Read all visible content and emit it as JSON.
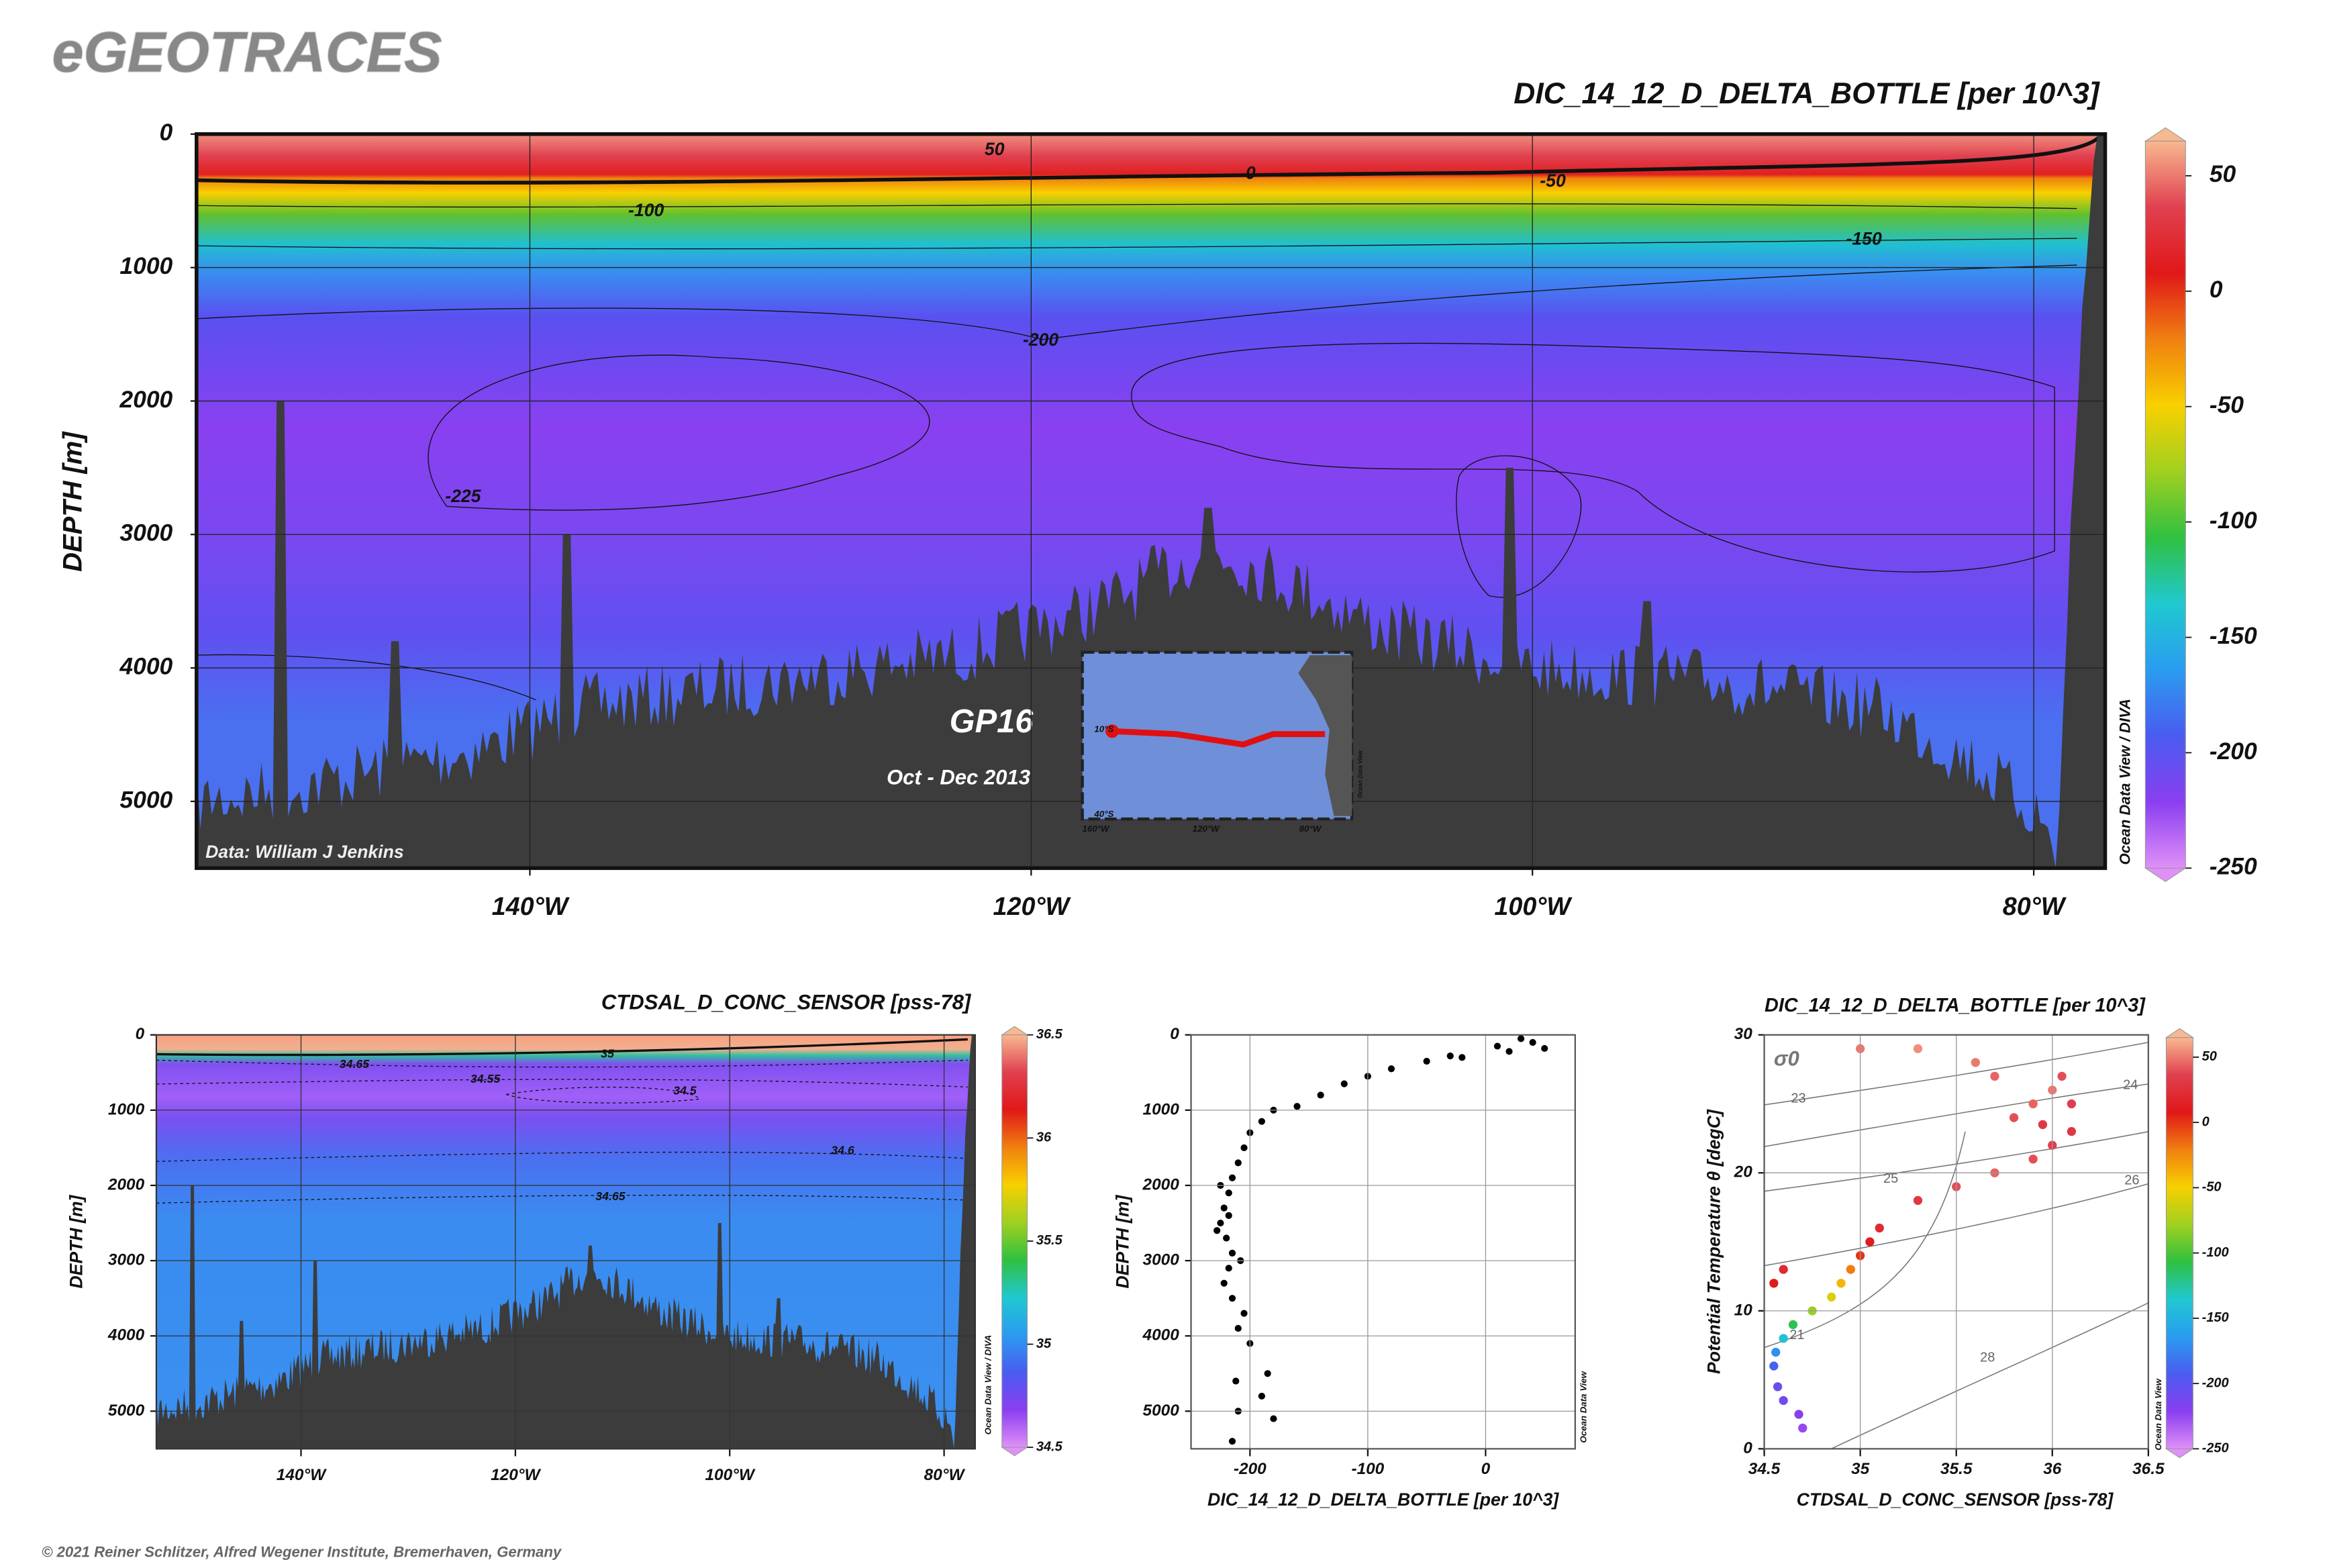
{
  "header": {
    "title": "eGEOTRACES"
  },
  "footer": {
    "text": "© 2021 Reiner Schlitzer, Alfred Wegener Institute, Bremerhaven, Germany"
  },
  "chart_data": [
    {
      "type": "section",
      "title": "DIC_14_12_D_DELTA_BOTTLE [per 10^3]",
      "y_label": "DEPTH [m]",
      "side_label": "Ocean Data View / DIVA",
      "credit": "Data: William J Jenkins",
      "cruise": "GP16",
      "period": "Oct - Dec 2013",
      "xlim": [
        -153.3,
        -77.15
      ],
      "xticks": [
        {
          "value": -140,
          "label": "140°W"
        },
        {
          "value": -120,
          "label": "120°W"
        },
        {
          "value": -100,
          "label": "100°W"
        },
        {
          "value": -80,
          "label": "80°W"
        }
      ],
      "ylim": [
        0,
        5500
      ],
      "yticks": [
        0,
        1000,
        2000,
        3000,
        4000,
        5000
      ],
      "y_reversed": true,
      "grid": true,
      "colorbar": {
        "lim": [
          -250,
          65
        ],
        "ticks": [
          50,
          0,
          -50,
          -100,
          -150,
          -200,
          -250
        ]
      },
      "colormap": [
        "#e090f8",
        "#8a3ef0",
        "#4a5cf0",
        "#2a9cf0",
        "#20c8d0",
        "#30c040",
        "#a0d020",
        "#f8d000",
        "#f08010",
        "#e01818",
        "#e04050",
        "#f8b890"
      ],
      "contour_labels": [
        50,
        0,
        -50,
        -100,
        -150,
        -200,
        -225
      ],
      "inset_map": {
        "lat_labels": [
          "10°S",
          "40°S"
        ],
        "lon_labels": [
          "160°W",
          "120°W",
          "80°W"
        ],
        "side_label": "Ocean Data View"
      }
    },
    {
      "type": "section",
      "title": "CTDSAL_D_CONC_SENSOR [pss-78]",
      "y_label": "DEPTH [m]",
      "side_label": "Ocean Data View / DIVA",
      "xlim": [
        -153.5,
        -77.1
      ],
      "xticks": [
        {
          "value": -140,
          "label": "140°W"
        },
        {
          "value": -120,
          "label": "120°W"
        },
        {
          "value": -100,
          "label": "100°W"
        },
        {
          "value": -80,
          "label": "80°W"
        }
      ],
      "ylim": [
        0,
        5500
      ],
      "yticks": [
        0,
        1000,
        2000,
        3000,
        4000,
        5000
      ],
      "y_reversed": true,
      "grid": true,
      "colorbar": {
        "lim": [
          34.5,
          36.5
        ],
        "ticks": [
          36.5,
          36,
          35.5,
          35,
          34.5
        ]
      },
      "colormap": [
        "#e090f8",
        "#8a3ef0",
        "#4a5cf0",
        "#2a9cf0",
        "#20c8d0",
        "#30c040",
        "#a0d020",
        "#f8d000",
        "#f08010",
        "#e01818",
        "#e04050",
        "#f8b890"
      ],
      "contour_labels": [
        34.65,
        34.55,
        34.5,
        34.6,
        34.65,
        35
      ]
    },
    {
      "type": "scatter",
      "x_label": "DIC_14_12_D_DELTA_BOTTLE [per 10^3]",
      "y_label": "DEPTH [m]",
      "side_label": "Ocean Data View",
      "xlim": [
        -250,
        76
      ],
      "xticks": [
        -200,
        -100,
        0
      ],
      "ylim": [
        0,
        5500
      ],
      "yticks": [
        0,
        1000,
        2000,
        3000,
        4000,
        5000
      ],
      "y_reversed": true,
      "grid": true,
      "color": "#000000",
      "x": [
        30,
        40,
        10,
        50,
        20,
        -30,
        -20,
        -50,
        -80,
        -100,
        -120,
        -140,
        -160,
        -180,
        -190,
        -200,
        -205,
        -210,
        -215,
        -218,
        -222,
        -225,
        -228,
        -220,
        -215,
        -218,
        -222,
        -215,
        -205,
        -210,
        -200,
        -212,
        -185,
        -190,
        -210,
        -180,
        -215,
        -225,
        -218,
        -208
      ],
      "y": [
        50,
        100,
        150,
        180,
        220,
        280,
        300,
        350,
        450,
        550,
        650,
        800,
        950,
        1000,
        1150,
        1300,
        1500,
        1700,
        1900,
        2100,
        2300,
        2500,
        2600,
        2700,
        2900,
        3100,
        3300,
        3500,
        3700,
        3900,
        4100,
        4600,
        4500,
        4800,
        5000,
        5100,
        5400,
        2000,
        2400,
        3000
      ]
    },
    {
      "type": "scatter",
      "title": "DIC_14_12_D_DELTA_BOTTLE [per 10^3]",
      "x_label": "CTDSAL_D_CONC_SENSOR [pss-78]",
      "y_label": "Potential Temperature θ [degC]",
      "side_label": "Ocean Data View",
      "xlim": [
        34.5,
        36.5
      ],
      "xticks": [
        34.5,
        35,
        35.5,
        36,
        36.5
      ],
      "ylim": [
        0,
        30
      ],
      "yticks": [
        0,
        10,
        20,
        30
      ],
      "grid": true,
      "colorbar": {
        "lim": [
          -250,
          65
        ],
        "ticks": [
          50,
          0,
          -50,
          -100,
          -150,
          -200,
          -250
        ]
      },
      "colormap": [
        "#e090f8",
        "#8a3ef0",
        "#4a5cf0",
        "#2a9cf0",
        "#20c8d0",
        "#30c040",
        "#a0d020",
        "#f8d000",
        "#f08010",
        "#e01818",
        "#e04050",
        "#f8b890"
      ],
      "isopycnal_symbol": "σ0",
      "isopycnal_labels": [
        21,
        23,
        24,
        25,
        26,
        28
      ],
      "x": [
        34.7,
        34.68,
        34.6,
        34.57,
        34.55,
        34.56,
        34.6,
        34.65,
        34.75,
        34.85,
        34.9,
        34.95,
        35.0,
        35.05,
        35.1,
        35.3,
        35.5,
        35.7,
        35.9,
        36.0,
        36.1,
        35.8,
        35.9,
        36.0,
        35.7,
        35.6,
        35.3,
        35.0,
        36.05,
        36.1,
        35.95,
        34.55,
        34.6
      ],
      "y": [
        1.5,
        2.5,
        3.5,
        4.5,
        6,
        7,
        8,
        9,
        10,
        11,
        12,
        13,
        14,
        15,
        16,
        18,
        19,
        20,
        21,
        22,
        23,
        24,
        25,
        26,
        27,
        28,
        29,
        29,
        27,
        25,
        23.5,
        12,
        13
      ],
      "z": [
        -225,
        -220,
        -210,
        -205,
        -190,
        -170,
        -140,
        -110,
        -80,
        -60,
        -40,
        -20,
        0,
        10,
        20,
        30,
        40,
        45,
        40,
        35,
        30,
        40,
        45,
        50,
        45,
        50,
        55,
        50,
        40,
        35,
        30,
        10,
        20
      ]
    }
  ]
}
